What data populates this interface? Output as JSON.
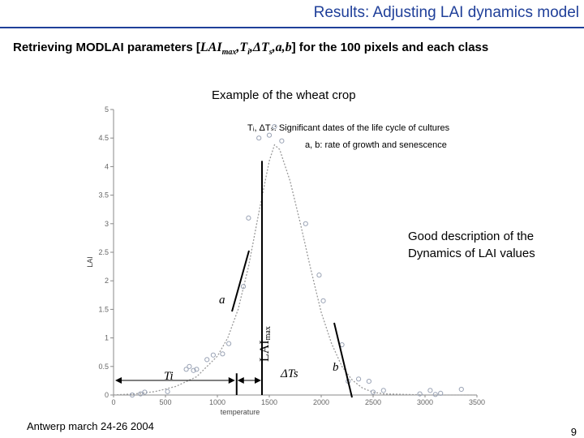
{
  "header": {
    "title": "Results: Adjusting LAI dynamics model",
    "subtitle_prefix": "Retrieving MODLAI parameters [",
    "subtitle_params": "LAI",
    "subtitle_max": "max",
    "subtitle_ti": ",T",
    "subtitle_i": "i",
    "subtitle_delta": ",ΔT",
    "subtitle_s": "s",
    "subtitle_ab": ",a,b",
    "subtitle_suffix": "] for the 100 pixels and each class"
  },
  "example_label": "Example of the wheat crop",
  "annotations": {
    "dates": "Tᵢ, ΔTₛ: Significant dates of the life cycle of cultures",
    "rates": "a, b: rate of growth and senescence",
    "good_line1": "Good description of the",
    "good_line2": "Dynamics of LAI values"
  },
  "footer": {
    "event": "Antwerp march 24-26 2004",
    "page": "9"
  },
  "colors": {
    "title": "#1f3f99",
    "observations": "#9aa3b5",
    "curve": "#9a9a9a"
  },
  "chart_data": {
    "type": "scatter",
    "title": "Example of the wheat crop",
    "xlabel": "temperature",
    "ylabel": "LAI",
    "xlim": [
      0,
      3500
    ],
    "ylim": [
      0,
      5
    ],
    "xticks": [
      0,
      500,
      1000,
      1500,
      2000,
      2500,
      3000,
      3500
    ],
    "yticks": [
      0,
      0.5,
      1,
      1.5,
      2,
      2.5,
      3,
      3.5,
      4,
      4.5,
      5
    ],
    "series": [
      {
        "name": "observed LAI",
        "kind": "points",
        "x": [
          180,
          260,
          300,
          520,
          700,
          730,
          770,
          800,
          900,
          960,
          1050,
          1110,
          1250,
          1300,
          1400,
          1500,
          1550,
          1620,
          1850,
          1980,
          2020,
          2200,
          2260,
          2360,
          2460,
          2500,
          2600,
          2950,
          3050,
          3100,
          3150,
          3350
        ],
        "y": [
          0.0,
          0.02,
          0.05,
          0.06,
          0.45,
          0.5,
          0.43,
          0.45,
          0.62,
          0.7,
          0.72,
          0.9,
          1.9,
          3.1,
          4.5,
          4.55,
          4.7,
          4.45,
          3.0,
          2.1,
          1.65,
          0.88,
          0.24,
          0.28,
          0.24,
          0.05,
          0.08,
          0.02,
          0.08,
          0.01,
          0.03,
          0.1
        ]
      },
      {
        "name": "fitted LAI",
        "kind": "curve",
        "x": [
          0,
          200,
          400,
          600,
          800,
          1000,
          1100,
          1200,
          1300,
          1400,
          1500,
          1550,
          1600,
          1700,
          1800,
          1900,
          2000,
          2100,
          2200,
          2300,
          2400,
          2500,
          2600,
          3000,
          3500
        ],
        "y": [
          0.0,
          0.02,
          0.06,
          0.15,
          0.32,
          0.68,
          1.0,
          1.5,
          2.25,
          3.2,
          4.1,
          4.38,
          4.3,
          3.75,
          3.0,
          2.2,
          1.45,
          0.9,
          0.5,
          0.26,
          0.12,
          0.05,
          0.02,
          0.0,
          0.0
        ]
      }
    ],
    "markers": {
      "Ti_label": "Ti",
      "Ti_x": 1170,
      "LAImax_label": "LAI",
      "LAImax_sub": "max",
      "LAImax_x": 1500,
      "LAImax_value": 4.1,
      "dTs_label": "ΔTs",
      "dTs_range": [
        1170,
        1500
      ],
      "a_label": "a",
      "b_label": "b"
    }
  }
}
